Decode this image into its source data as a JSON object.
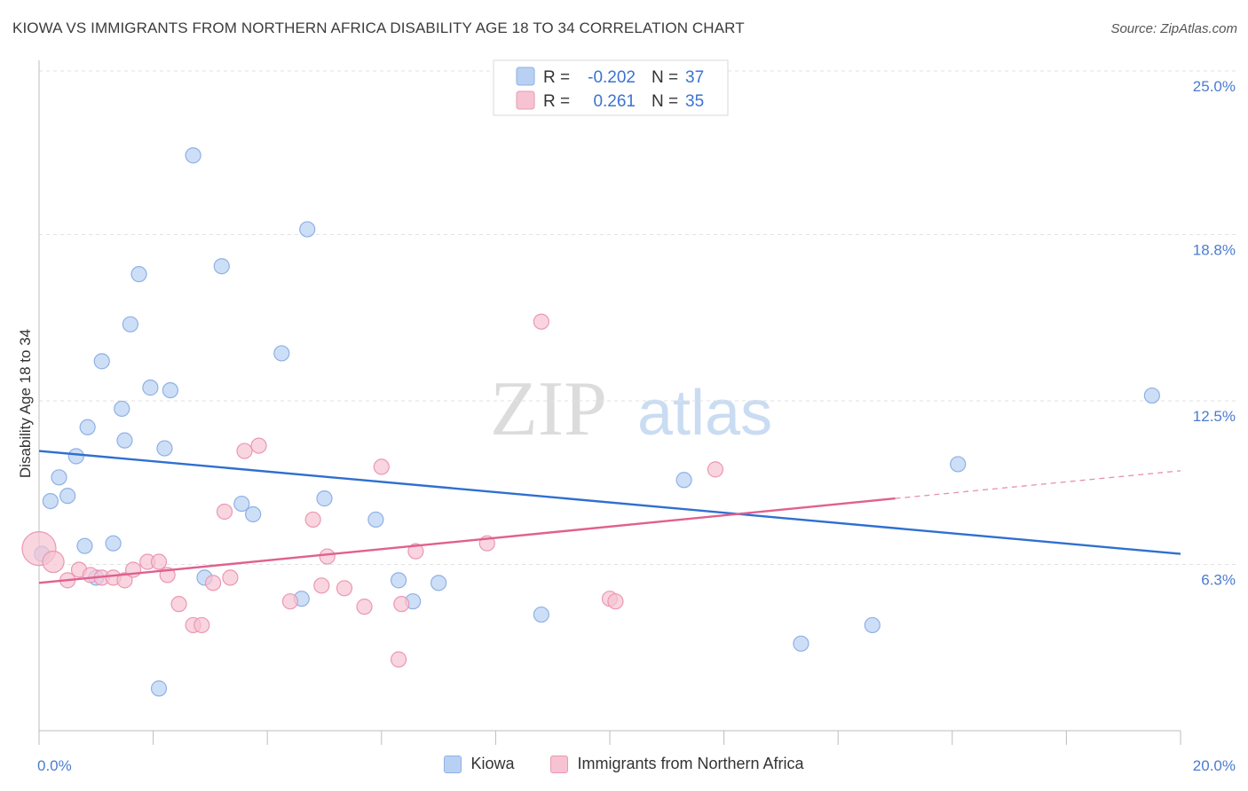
{
  "title": "KIOWA VS IMMIGRANTS FROM NORTHERN AFRICA DISABILITY AGE 18 TO 34 CORRELATION CHART",
  "source": "Source: ZipAtlas.com",
  "watermark": {
    "zip": "ZIP",
    "atlas": "atlas"
  },
  "legend": {
    "kiowa": {
      "r_label": "R =",
      "r_value": "-0.202",
      "n_label": "N =",
      "n_value": "37"
    },
    "immigrants": {
      "r_label": "R =",
      "r_value": "0.261",
      "n_label": "N =",
      "n_value": "35"
    }
  },
  "bottom_legend": {
    "kiowa": "Kiowa",
    "immigrants": "Immigrants from Northern Africa"
  },
  "colors": {
    "kiowa_fill": "#b8d1f3",
    "kiowa_stroke": "#8fb0e4",
    "kiowa_line": "#2f6fd0",
    "imm_fill": "#f7c3d3",
    "imm_stroke": "#ea98b3",
    "imm_line": "#e0608e",
    "tick_text": "#4a7cd0"
  },
  "chart_data": {
    "type": "scatter",
    "xlabel": "",
    "ylabel": "Disability Age 18 to 34",
    "xlim": [
      0,
      20
    ],
    "ylim": [
      0,
      25
    ],
    "x_tick_labels": [
      "0.0%",
      "20.0%"
    ],
    "y_tick_labels": [
      "25.0%",
      "18.8%",
      "12.5%",
      "6.3%"
    ],
    "y_tick_values": [
      25.0,
      18.8,
      12.5,
      6.3
    ],
    "series": [
      {
        "name": "Kiowa",
        "points": [
          [
            0.05,
            6.7
          ],
          [
            0.2,
            8.7
          ],
          [
            0.35,
            9.6
          ],
          [
            0.5,
            8.9
          ],
          [
            0.65,
            10.4
          ],
          [
            0.8,
            7.0
          ],
          [
            0.85,
            11.5
          ],
          [
            1.0,
            5.8
          ],
          [
            1.1,
            14.0
          ],
          [
            1.3,
            7.1
          ],
          [
            1.45,
            12.2
          ],
          [
            1.5,
            11.0
          ],
          [
            1.6,
            15.4
          ],
          [
            1.75,
            17.3
          ],
          [
            1.95,
            13.0
          ],
          [
            2.1,
            1.6
          ],
          [
            2.2,
            10.7
          ],
          [
            2.3,
            12.9
          ],
          [
            2.7,
            21.8
          ],
          [
            2.9,
            5.8
          ],
          [
            3.2,
            17.6
          ],
          [
            3.55,
            8.6
          ],
          [
            3.75,
            8.2
          ],
          [
            4.25,
            14.3
          ],
          [
            4.6,
            5.0
          ],
          [
            4.7,
            19.0
          ],
          [
            5.0,
            8.8
          ],
          [
            5.9,
            8.0
          ],
          [
            6.3,
            5.7
          ],
          [
            6.55,
            4.9
          ],
          [
            7.0,
            5.6
          ],
          [
            8.8,
            4.4
          ],
          [
            11.3,
            9.5
          ],
          [
            13.35,
            3.3
          ],
          [
            14.6,
            4.0
          ],
          [
            16.1,
            10.1
          ],
          [
            19.5,
            12.7
          ]
        ],
        "trend": {
          "x": [
            0,
            20
          ],
          "y": [
            10.6,
            6.7
          ]
        }
      },
      {
        "name": "Immigrants from Northern Africa",
        "points": [
          [
            0.0,
            6.9
          ],
          [
            0.25,
            6.4
          ],
          [
            0.5,
            5.7
          ],
          [
            0.7,
            6.1
          ],
          [
            0.9,
            5.9
          ],
          [
            1.1,
            5.8
          ],
          [
            1.3,
            5.8
          ],
          [
            1.5,
            5.7
          ],
          [
            1.65,
            6.1
          ],
          [
            1.9,
            6.4
          ],
          [
            2.1,
            6.4
          ],
          [
            2.25,
            5.9
          ],
          [
            2.45,
            4.8
          ],
          [
            2.7,
            4.0
          ],
          [
            2.85,
            4.0
          ],
          [
            3.05,
            5.6
          ],
          [
            3.25,
            8.3
          ],
          [
            3.35,
            5.8
          ],
          [
            3.6,
            10.6
          ],
          [
            3.85,
            10.8
          ],
          [
            4.4,
            4.9
          ],
          [
            4.8,
            8.0
          ],
          [
            4.95,
            5.5
          ],
          [
            5.05,
            6.6
          ],
          [
            5.35,
            5.4
          ],
          [
            5.7,
            4.7
          ],
          [
            6.0,
            10.0
          ],
          [
            6.3,
            2.7
          ],
          [
            6.35,
            4.8
          ],
          [
            6.6,
            6.8
          ],
          [
            7.85,
            7.1
          ],
          [
            8.8,
            15.5
          ],
          [
            10.0,
            5.0
          ],
          [
            10.1,
            4.9
          ],
          [
            11.85,
            9.9
          ]
        ],
        "trend": {
          "x": [
            0,
            15
          ],
          "y": [
            5.6,
            8.8
          ]
        },
        "trend_extension": {
          "x": [
            15,
            20
          ],
          "y": [
            8.8,
            9.85
          ]
        }
      }
    ]
  }
}
